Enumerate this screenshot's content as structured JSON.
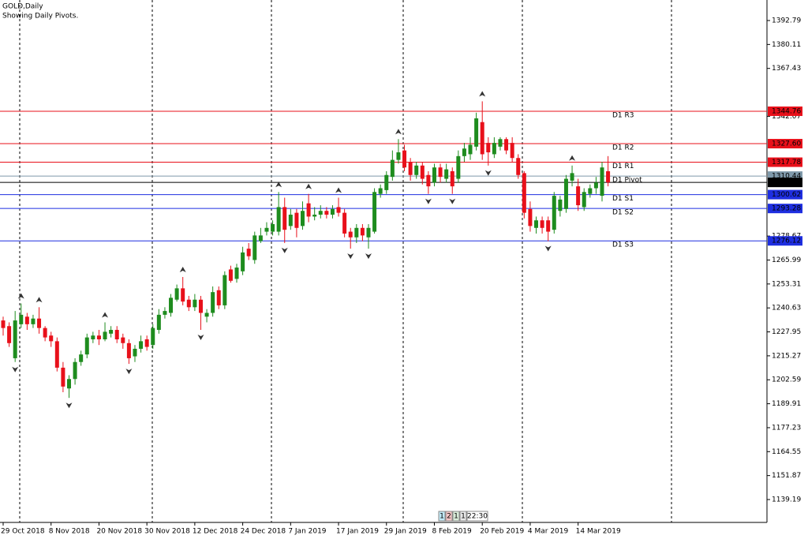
{
  "chart_data": {
    "type": "candlestick",
    "title": "GOLD,Daily",
    "subtitle": "Showing Daily Pivots.",
    "categories": [
      "29 Oct 2018",
      null,
      null,
      null,
      null,
      null,
      null,
      null,
      "8 Nov 2018",
      null,
      null,
      null,
      null,
      null,
      null,
      null,
      "20 Nov 2018",
      null,
      null,
      null,
      null,
      null,
      null,
      null,
      "30 Nov 2018",
      null,
      null,
      null,
      null,
      null,
      null,
      null,
      "12 Dec 2018",
      null,
      null,
      null,
      null,
      null,
      null,
      null,
      "24 Dec 2018",
      null,
      null,
      null,
      null,
      null,
      null,
      null,
      "7 Jan 2019",
      null,
      null,
      null,
      null,
      null,
      null,
      null,
      "17 Jan 2019",
      null,
      null,
      null,
      null,
      null,
      null,
      null,
      "29 Jan 2019",
      null,
      null,
      null,
      null,
      null,
      null,
      null,
      "8 Feb 2019",
      null,
      null,
      null,
      null,
      null,
      null,
      null,
      "20 Feb 2019",
      null,
      null,
      null,
      null,
      null,
      null,
      null,
      "4 Mar 2019",
      null,
      null,
      null,
      null,
      null,
      null,
      null,
      "14 Mar 2019",
      null,
      null,
      null,
      null,
      null
    ],
    "open": [
      1234,
      1231,
      1214,
      1232,
      1236,
      1232,
      1235,
      1230,
      1226,
      1223,
      1209,
      1198,
      1203,
      1212,
      1216,
      1224,
      1226,
      1224,
      1227,
      1229,
      1225,
      1222,
      1215,
      1219,
      1224,
      1221,
      1229,
      1237,
      1238,
      1245,
      1251,
      1245,
      1241,
      1245,
      1236,
      1238,
      1250,
      1242,
      1261,
      1256,
      1260,
      1272,
      1266,
      1276,
      1281,
      1281,
      1281,
      1294,
      1284,
      1291,
      1284,
      1296,
      1289,
      1290,
      1292,
      1290,
      1294,
      1291,
      1281,
      1278,
      1283,
      1278,
      1281,
      1301,
      1303,
      1310,
      1319,
      1324,
      1318,
      1311,
      1316,
      1311,
      1307,
      1315,
      1309,
      1313,
      1309,
      1321,
      1322,
      1326,
      1339,
      1328,
      1322,
      1326,
      1330,
      1328,
      1320,
      1312,
      1293,
      1283,
      1287,
      1287,
      1282,
      1292,
      1293,
      1308,
      1305,
      1294,
      1301,
      1304,
      1300,
      1313
    ],
    "high": [
      1236,
      1233,
      1239,
      1243,
      1238,
      1237,
      1241,
      1231,
      1228,
      1225,
      1212,
      1205,
      1214,
      1218,
      1227,
      1228,
      1229,
      1233,
      1231,
      1231,
      1227,
      1224,
      1221,
      1226,
      1226,
      1232,
      1240,
      1241,
      1248,
      1253,
      1257,
      1247,
      1248,
      1247,
      1240,
      1252,
      1252,
      1260,
      1263,
      1264,
      1273,
      1275,
      1281,
      1283,
      1286,
      1287,
      1302,
      1299,
      1293,
      1293,
      1297,
      1301,
      1294,
      1295,
      1294,
      1295,
      1299,
      1293,
      1283,
      1285,
      1285,
      1285,
      1304,
      1306,
      1313,
      1324,
      1330,
      1327,
      1320,
      1318,
      1318,
      1313,
      1317,
      1317,
      1317,
      1315,
      1324,
      1328,
      1331,
      1344,
      1350,
      1331,
      1331,
      1331,
      1331,
      1331,
      1322,
      1313,
      1297,
      1289,
      1289,
      1289,
      1302,
      1300,
      1311,
      1316,
      1309,
      1304,
      1306,
      1310,
      1318,
      1321
    ],
    "low": [
      1226,
      1220,
      1212,
      1230,
      1229,
      1230,
      1227,
      1223,
      1220,
      1207,
      1196,
      1193,
      1200,
      1210,
      1214,
      1222,
      1221,
      1223,
      1225,
      1222,
      1219,
      1211,
      1212,
      1217,
      1218,
      1219,
      1227,
      1235,
      1236,
      1244,
      1242,
      1239,
      1239,
      1229,
      1233,
      1236,
      1240,
      1240,
      1254,
      1254,
      1258,
      1266,
      1264,
      1275,
      1279,
      1279,
      1279,
      1275,
      1282,
      1278,
      1282,
      1286,
      1287,
      1288,
      1288,
      1288,
      1289,
      1278,
      1272,
      1275,
      1276,
      1272,
      1280,
      1299,
      1301,
      1308,
      1317,
      1313,
      1308,
      1309,
      1306,
      1301,
      1305,
      1307,
      1307,
      1301,
      1307,
      1318,
      1319,
      1324,
      1319,
      1316,
      1320,
      1324,
      1322,
      1318,
      1309,
      1288,
      1281,
      1280,
      1280,
      1276,
      1280,
      1289,
      1291,
      1305,
      1292,
      1292,
      1299,
      1301,
      1297,
      1305
    ],
    "close": [
      1230,
      1222,
      1234,
      1237,
      1232,
      1235,
      1230,
      1225,
      1223,
      1209,
      1199,
      1203,
      1212,
      1216,
      1225,
      1226,
      1224,
      1228,
      1229,
      1224,
      1222,
      1214,
      1219,
      1223,
      1220,
      1230,
      1237,
      1239,
      1246,
      1251,
      1244,
      1241,
      1245,
      1238,
      1238,
      1249,
      1242,
      1258,
      1255,
      1262,
      1270,
      1268,
      1279,
      1279,
      1283,
      1285,
      1294,
      1282,
      1290,
      1283,
      1292,
      1289,
      1290,
      1292,
      1290,
      1293,
      1291,
      1280,
      1278,
      1283,
      1279,
      1283,
      1302,
      1304,
      1311,
      1319,
      1323,
      1315,
      1311,
      1316,
      1309,
      1305,
      1315,
      1310,
      1314,
      1305,
      1321,
      1325,
      1327,
      1341,
      1322,
      1323,
      1328,
      1330,
      1324,
      1320,
      1311,
      1291,
      1284,
      1287,
      1283,
      1281,
      1300,
      1298,
      1309,
      1312,
      1295,
      1302,
      1304,
      1307,
      1315,
      1307.08
    ],
    "up_color": "#1e8c1e",
    "down_color": "#e8101a",
    "pivots": {
      "names": [
        "D1 R3",
        "D1 R2",
        "D1 R1",
        "D1 Pivot",
        "D1 S1",
        "D1 S2",
        "D1 S3"
      ],
      "values": [
        1344.76,
        1327.6,
        1317.78,
        1310.44,
        1300.62,
        1293.28,
        1276.12
      ],
      "value_labels": [
        "1344.76",
        "1327.60",
        "1317.78",
        "1310.44",
        "1300.62",
        "1293.28",
        "1276.12"
      ],
      "colors": [
        "#e8101a",
        "#e8101a",
        "#e8101a",
        "#7f99aa",
        "#1e2ee0",
        "#1e2ee0",
        "#1e2ee0"
      ]
    },
    "last_price": 1307.08,
    "ylim": [
      1127.07,
      1403.65
    ],
    "yticks": [
      1139.19,
      1151.87,
      1164.55,
      1177.23,
      1189.91,
      1202.59,
      1215.27,
      1227.95,
      1240.63,
      1253.31,
      1265.99,
      1278.67,
      1342.07,
      1367.43,
      1380.11,
      1392.79
    ],
    "footer_controls": [
      "1",
      "2",
      "1",
      "1",
      "22:30"
    ]
  }
}
